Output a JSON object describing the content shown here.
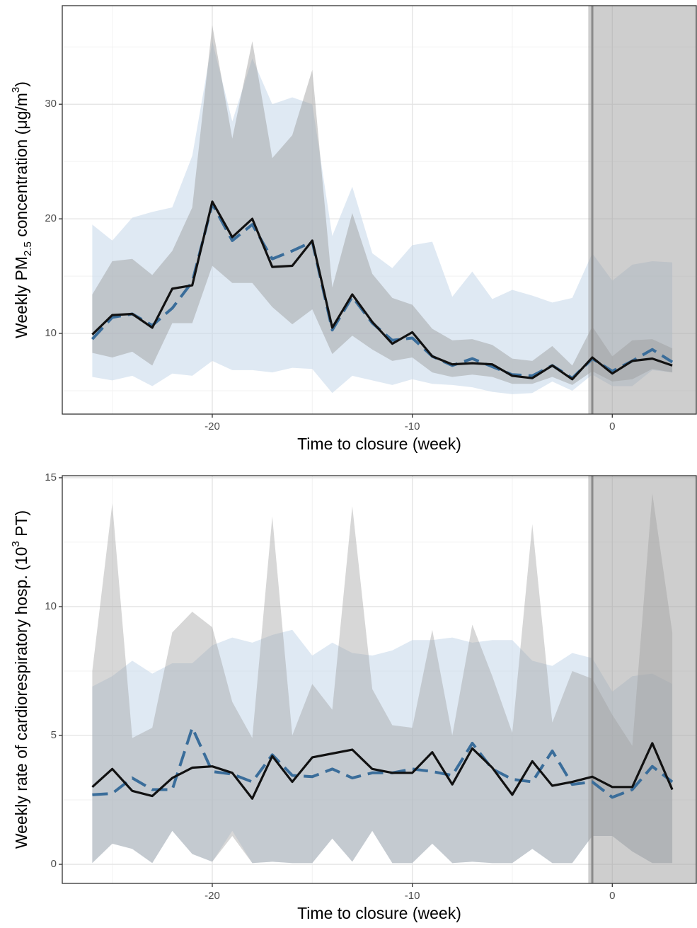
{
  "chart_data": [
    {
      "type": "line",
      "ylabel": [
        "Weekly PM",
        "2.5",
        " concentration (μg/m",
        "3",
        ")"
      ],
      "xlabel": "Time to closure (week)",
      "x": [
        -26,
        -25,
        -24,
        -23,
        -22,
        -21,
        -20,
        -19,
        -18,
        -17,
        -16,
        -15,
        -14,
        -13,
        -12,
        -11,
        -10,
        -9,
        -8,
        -7,
        -6,
        -5,
        -4,
        -3,
        -2,
        -1,
        0,
        1,
        2,
        3
      ],
      "xlim": [
        -27.5,
        4.2
      ],
      "xticks": [
        -20,
        -10,
        0
      ],
      "xminor": [
        -25,
        -15,
        -5
      ],
      "ylim": [
        2.96,
        38.6
      ],
      "yticks": [
        10,
        20,
        30
      ],
      "yminor": [
        5,
        15,
        25,
        35
      ],
      "grid": true,
      "shade_from": -1.2,
      "vline_x": -1,
      "bands": [
        {
          "color": "#c5d7ea",
          "opacity": 0.55,
          "lower": [
            6.2,
            5.9,
            6.3,
            5.4,
            6.5,
            6.3,
            7.6,
            6.8,
            6.8,
            6.6,
            7.0,
            6.9,
            4.8,
            6.3,
            5.9,
            5.5,
            6.0,
            5.6,
            5.5,
            5.3,
            4.9,
            4.7,
            4.8,
            5.8,
            5.0,
            6.4,
            5.4,
            5.4,
            6.8,
            6.6
          ],
          "upper": [
            19.5,
            18.1,
            20.1,
            20.6,
            21.0,
            25.5,
            35.5,
            28.5,
            34.0,
            30.0,
            30.6,
            30.0,
            18.5,
            22.8,
            17.0,
            15.7,
            17.7,
            18.0,
            13.2,
            15.4,
            13.0,
            13.8,
            13.3,
            12.7,
            13.1,
            17.0,
            14.6,
            16.0,
            16.3,
            16.2
          ]
        },
        {
          "color": "#9a9a9a",
          "opacity": 0.45,
          "lower": [
            8.3,
            7.9,
            8.4,
            7.2,
            10.9,
            10.9,
            15.9,
            14.4,
            14.4,
            12.3,
            10.8,
            12.1,
            8.2,
            9.8,
            8.6,
            7.6,
            7.9,
            6.6,
            6.2,
            6.4,
            6.2,
            5.6,
            5.6,
            6.2,
            5.5,
            6.7,
            5.8,
            6.0,
            6.9,
            6.6
          ],
          "upper": [
            13.4,
            16.3,
            16.5,
            15.1,
            17.2,
            21.0,
            36.9,
            27.0,
            35.5,
            25.3,
            27.3,
            33.0,
            14.0,
            20.5,
            15.2,
            13.1,
            12.5,
            10.4,
            9.4,
            9.5,
            9.0,
            7.8,
            7.6,
            8.9,
            7.2,
            10.6,
            8.0,
            9.4,
            9.5,
            8.7
          ]
        }
      ],
      "series": [
        {
          "color": "#3a6d9a",
          "dashed": true,
          "values": [
            9.5,
            11.4,
            11.7,
            10.7,
            12.2,
            14.5,
            21.3,
            18.1,
            19.5,
            16.5,
            17.2,
            18.0,
            10.3,
            13.2,
            10.9,
            9.4,
            9.6,
            8.0,
            7.2,
            7.8,
            7.1,
            6.4,
            6.3,
            7.2,
            6.1,
            7.8,
            6.7,
            7.6,
            8.6,
            7.5
          ]
        },
        {
          "color": "#111111",
          "dashed": false,
          "values": [
            9.9,
            11.6,
            11.7,
            10.5,
            13.9,
            14.2,
            21.5,
            18.4,
            20.0,
            15.8,
            15.9,
            18.1,
            10.5,
            13.4,
            11.0,
            9.1,
            10.1,
            8.0,
            7.3,
            7.4,
            7.3,
            6.3,
            6.1,
            7.2,
            6.0,
            7.9,
            6.5,
            7.6,
            7.8,
            7.2
          ]
        }
      ]
    },
    {
      "type": "line",
      "ylabel": [
        "Weekly rate of cardiorespiratory hosp. (10",
        "3",
        " PT)"
      ],
      "xlabel": "Time to closure (week)",
      "x": [
        -26,
        -25,
        -24,
        -23,
        -22,
        -21,
        -20,
        -19,
        -18,
        -17,
        -16,
        -15,
        -14,
        -13,
        -12,
        -11,
        -10,
        -9,
        -8,
        -7,
        -6,
        -5,
        -4,
        -3,
        -2,
        -1,
        0,
        1,
        2,
        3
      ],
      "xlim": [
        -27.5,
        4.2
      ],
      "xticks": [
        -20,
        -10,
        0
      ],
      "xminor": [
        -25,
        -15,
        -5
      ],
      "ylim": [
        -0.74,
        15.08
      ],
      "yticks": [
        0,
        5,
        10,
        15
      ],
      "yminor": [
        2.5,
        7.5,
        12.5
      ],
      "grid": true,
      "shade_from": -1.2,
      "vline_x": -1,
      "bands": [
        {
          "color": "#c5d7ea",
          "opacity": 0.55,
          "lower": [
            0.05,
            0.8,
            0.6,
            0.05,
            1.3,
            0.4,
            0.1,
            1.3,
            0.05,
            0.1,
            0.05,
            0.05,
            1.0,
            0.1,
            1.3,
            0.05,
            0.05,
            0.8,
            0.05,
            0.1,
            0.05,
            0.05,
            0.6,
            0.05,
            0.05,
            1.1,
            1.1,
            0.5,
            0.05,
            0.05
          ],
          "upper": [
            6.9,
            7.3,
            7.9,
            7.4,
            7.8,
            7.8,
            8.5,
            8.8,
            8.6,
            8.9,
            9.1,
            8.1,
            8.6,
            8.2,
            8.1,
            8.3,
            8.7,
            8.7,
            8.8,
            8.6,
            8.7,
            8.7,
            7.9,
            7.7,
            8.2,
            8.0,
            6.7,
            7.3,
            7.4,
            7.0
          ]
        },
        {
          "color": "#9a9a9a",
          "opacity": 0.4,
          "lower": [
            0.05,
            0.8,
            0.6,
            0.05,
            1.3,
            0.4,
            0.1,
            1.1,
            0.05,
            0.1,
            0.05,
            0.05,
            1.0,
            0.1,
            1.3,
            0.05,
            0.05,
            0.8,
            0.05,
            0.1,
            0.05,
            0.05,
            0.6,
            0.05,
            0.05,
            1.1,
            1.1,
            0.5,
            0.05,
            0.05
          ],
          "upper": [
            7.5,
            14.0,
            4.9,
            5.3,
            9.0,
            9.8,
            9.2,
            6.3,
            4.9,
            13.5,
            5.0,
            7.0,
            6.0,
            13.9,
            6.8,
            5.4,
            5.3,
            9.1,
            5.0,
            9.3,
            7.3,
            5.1,
            13.2,
            5.5,
            7.5,
            7.2,
            5.8,
            4.6,
            14.4,
            9.0
          ]
        }
      ],
      "series": [
        {
          "color": "#3a6d9a",
          "dashed": true,
          "values": [
            2.7,
            2.75,
            3.35,
            2.9,
            2.9,
            5.3,
            3.6,
            3.5,
            3.2,
            4.25,
            3.45,
            3.4,
            3.7,
            3.35,
            3.55,
            3.55,
            3.7,
            3.6,
            3.45,
            4.7,
            3.7,
            3.3,
            3.2,
            4.4,
            3.1,
            3.2,
            2.6,
            2.9,
            3.8,
            3.2
          ]
        },
        {
          "color": "#111111",
          "dashed": false,
          "values": [
            3.0,
            3.7,
            2.85,
            2.65,
            3.35,
            3.75,
            3.8,
            3.55,
            2.55,
            4.2,
            3.2,
            4.15,
            4.3,
            4.45,
            3.7,
            3.55,
            3.55,
            4.35,
            3.1,
            4.5,
            3.75,
            2.7,
            4.0,
            3.05,
            3.2,
            3.4,
            3.0,
            3.0,
            4.7,
            2.9
          ]
        }
      ]
    }
  ]
}
